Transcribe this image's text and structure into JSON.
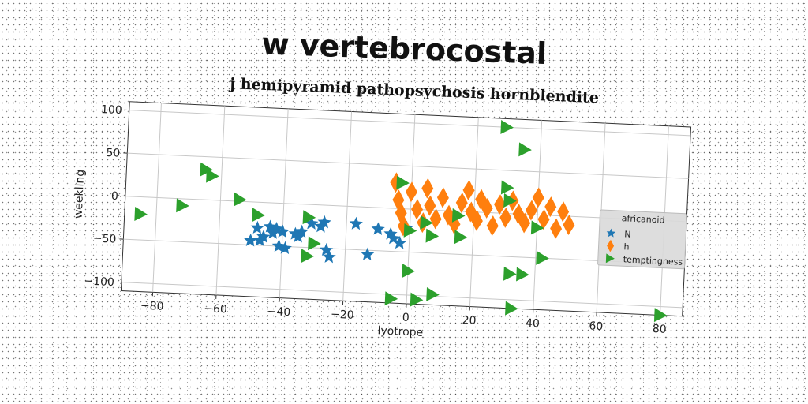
{
  "chart_data": {
    "type": "scatter",
    "title": "w vertebrocostal",
    "subtitle": "j hemipyramid pathopsychosis hornblendite",
    "xlabel": "lyotrope",
    "ylabel": "weekling",
    "xlim": [
      -90,
      87
    ],
    "ylim": [
      -110,
      110
    ],
    "xticks": [
      -80,
      -60,
      -40,
      -20,
      0,
      20,
      40,
      60,
      80
    ],
    "yticks": [
      -100,
      -50,
      0,
      50,
      100
    ],
    "grid": true,
    "legend": {
      "title": "africanoid",
      "placement": "right",
      "entries": [
        "N",
        "h",
        "temptingness"
      ]
    },
    "series": [
      {
        "name": "N",
        "marker": "star",
        "color": "#1f77b4",
        "points": [
          [
            -48,
            -30
          ],
          [
            -50,
            -45
          ],
          [
            -47,
            -44
          ],
          [
            -46,
            -40
          ],
          [
            -43,
            -35
          ],
          [
            -42,
            -30
          ],
          [
            -44,
            -28
          ],
          [
            -40,
            -33
          ],
          [
            -41,
            -50
          ],
          [
            -39,
            -52
          ],
          [
            -36,
            -35
          ],
          [
            -35,
            -38
          ],
          [
            -34,
            -32
          ],
          [
            -31,
            -22
          ],
          [
            -28,
            -25
          ],
          [
            -27,
            -20
          ],
          [
            -26,
            -52
          ],
          [
            -25,
            -60
          ],
          [
            -17,
            -20
          ],
          [
            -13,
            -55
          ],
          [
            -10,
            -25
          ],
          [
            -6,
            -30
          ],
          [
            -5,
            -35
          ],
          [
            -3,
            -40
          ],
          [
            -1,
            -22
          ]
        ]
      },
      {
        "name": "h",
        "marker": "diamond",
        "color": "#ff7f0e",
        "points": [
          [
            -5,
            30
          ],
          [
            -4,
            10
          ],
          [
            -3,
            -5
          ],
          [
            -2,
            -20
          ],
          [
            0,
            20
          ],
          [
            2,
            0
          ],
          [
            4,
            -15
          ],
          [
            5,
            25
          ],
          [
            6,
            5
          ],
          [
            8,
            -10
          ],
          [
            10,
            15
          ],
          [
            12,
            -5
          ],
          [
            14,
            -15
          ],
          [
            16,
            10
          ],
          [
            18,
            25
          ],
          [
            19,
            0
          ],
          [
            21,
            -10
          ],
          [
            22,
            15
          ],
          [
            24,
            5
          ],
          [
            26,
            -15
          ],
          [
            28,
            10
          ],
          [
            30,
            -5
          ],
          [
            32,
            15
          ],
          [
            34,
            0
          ],
          [
            36,
            -10
          ],
          [
            38,
            5
          ],
          [
            40,
            20
          ],
          [
            42,
            -5
          ],
          [
            44,
            10
          ],
          [
            46,
            -15
          ],
          [
            48,
            5
          ],
          [
            50,
            -10
          ]
        ]
      },
      {
        "name": "temptingness",
        "marker": "triangle-right",
        "color": "#2ca02c",
        "points": [
          [
            -85,
            -20
          ],
          [
            -72,
            -8
          ],
          [
            -65,
            35
          ],
          [
            -63,
            28
          ],
          [
            -54,
            2
          ],
          [
            -48,
            -15
          ],
          [
            -32,
            -15
          ],
          [
            -30,
            -45
          ],
          [
            -32,
            -60
          ],
          [
            -3,
            30
          ],
          [
            -5,
            -105
          ],
          [
            0,
            -25
          ],
          [
            0,
            -72
          ],
          [
            3,
            -105
          ],
          [
            5,
            -15
          ],
          [
            7,
            -30
          ],
          [
            8,
            -98
          ],
          [
            15,
            -5
          ],
          [
            16,
            -30
          ],
          [
            29,
            100
          ],
          [
            30,
            30
          ],
          [
            31,
            15
          ],
          [
            32,
            -70
          ],
          [
            33,
            -120
          ],
          [
            35,
            75
          ],
          [
            36,
            -70
          ],
          [
            40,
            -15
          ],
          [
            42,
            -50
          ],
          [
            80,
            -120
          ]
        ]
      }
    ]
  }
}
